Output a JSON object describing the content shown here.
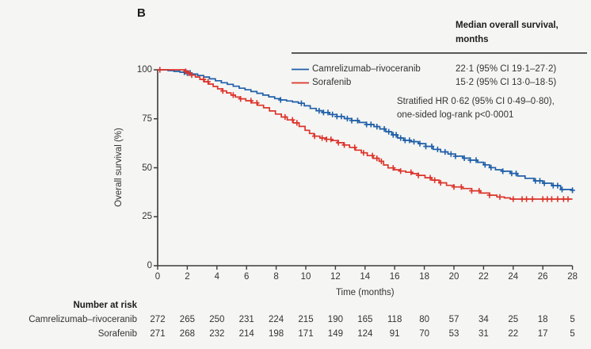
{
  "figure": {
    "panel_label": "B",
    "background_color": "#f5f5f3",
    "axis_color": "#3c3c3c",
    "text_color": "#333333"
  },
  "legend": {
    "header_line1": "Median overall survival,",
    "header_line2": "months",
    "rows": [
      {
        "name": "Camrelizumab–rivoceranib",
        "value": "22·1 (95% CI 19·1–27·2)",
        "color": "#1f5fa8"
      },
      {
        "name": "Sorafenib",
        "value": "15·2 (95% CI 13·0–18·5)",
        "color": "#dc342b"
      }
    ],
    "annotation_line1": "Stratified HR 0·62 (95% CI 0·49–0·80),",
    "annotation_line2": "one-sided log-rank p<0·0001"
  },
  "chart_data": {
    "type": "line",
    "subtype": "kaplan-meier-step",
    "title": "",
    "xlabel": "Time (months)",
    "ylabel": "Overall survival (%)",
    "xlim": [
      0,
      28
    ],
    "ylim": [
      0,
      100
    ],
    "xticks": [
      0,
      2,
      4,
      6,
      8,
      10,
      12,
      14,
      16,
      18,
      20,
      22,
      24,
      26,
      28
    ],
    "yticks": [
      0,
      25,
      50,
      75,
      100
    ],
    "grid": false,
    "legend_position": "top-right",
    "series": [
      {
        "name": "Camrelizumab–rivoceranib",
        "color": "#1f5fa8",
        "median_os_months": 22.1,
        "points": [
          [
            0,
            100
          ],
          [
            0.7,
            99.6
          ],
          [
            1.1,
            99.2
          ],
          [
            1.5,
            98.8
          ],
          [
            1.9,
            98.4
          ],
          [
            2.3,
            97.8
          ],
          [
            2.7,
            97.1
          ],
          [
            3.1,
            96.3
          ],
          [
            3.5,
            95.4
          ],
          [
            3.9,
            94.4
          ],
          [
            4.3,
            93.4
          ],
          [
            4.7,
            92.6
          ],
          [
            5.1,
            91.6
          ],
          [
            5.5,
            90.6
          ],
          [
            5.9,
            89.8
          ],
          [
            6.3,
            88.9
          ],
          [
            6.7,
            88.0
          ],
          [
            7.1,
            87.1
          ],
          [
            7.5,
            86.2
          ],
          [
            7.9,
            85.3
          ],
          [
            8.3,
            84.6
          ],
          [
            8.7,
            84.1
          ],
          [
            9.1,
            83.6
          ],
          [
            9.5,
            82.9
          ],
          [
            9.9,
            81.6
          ],
          [
            10.3,
            80.3
          ],
          [
            10.7,
            79.1
          ],
          [
            11.1,
            78.2
          ],
          [
            11.6,
            77.2
          ],
          [
            12.1,
            76.2
          ],
          [
            12.6,
            75.1
          ],
          [
            13.1,
            74.1
          ],
          [
            13.6,
            73.1
          ],
          [
            14.1,
            72.1
          ],
          [
            14.6,
            71.0
          ],
          [
            15.0,
            69.8
          ],
          [
            15.4,
            68.4
          ],
          [
            15.8,
            66.8
          ],
          [
            16.2,
            65.2
          ],
          [
            16.6,
            64.0
          ],
          [
            17.1,
            63.3
          ],
          [
            17.6,
            62.3
          ],
          [
            18.1,
            60.9
          ],
          [
            18.6,
            59.4
          ],
          [
            19.1,
            58.1
          ],
          [
            19.6,
            57.0
          ],
          [
            20.1,
            55.9
          ],
          [
            20.6,
            54.9
          ],
          [
            21.1,
            53.9
          ],
          [
            21.6,
            52.8
          ],
          [
            22.0,
            51.5
          ],
          [
            22.4,
            50.1
          ],
          [
            22.8,
            49.0
          ],
          [
            23.3,
            48.2
          ],
          [
            23.8,
            47.1
          ],
          [
            24.3,
            45.8
          ],
          [
            24.8,
            44.6
          ],
          [
            25.4,
            43.3
          ],
          [
            26.0,
            42.1
          ],
          [
            26.6,
            40.9
          ],
          [
            27.2,
            38.9
          ],
          [
            28,
            38.5
          ]
        ],
        "censor_times": [
          1.8,
          2.0,
          2.2,
          8.3,
          9.7,
          10.9,
          11.2,
          11.5,
          11.8,
          12.1,
          12.4,
          12.8,
          13.1,
          13.5,
          14.1,
          14.4,
          14.8,
          15.3,
          15.6,
          15.9,
          16.1,
          16.4,
          16.7,
          17.0,
          17.3,
          17.7,
          18.1,
          18.5,
          18.9,
          19.4,
          19.8,
          20.1,
          20.7,
          21.1,
          21.5,
          22.1,
          22.5,
          23.3,
          23.9,
          24.2,
          25.5,
          25.8,
          26.1,
          26.7,
          27.0,
          27.3,
          28.0
        ]
      },
      {
        "name": "Sorafenib",
        "color": "#dc342b",
        "median_os_months": 15.2,
        "points": [
          [
            0,
            100
          ],
          [
            1.85,
            99.2
          ],
          [
            2.05,
            98.3
          ],
          [
            2.3,
            97.3
          ],
          [
            2.55,
            96.3
          ],
          [
            2.85,
            95.1
          ],
          [
            3.15,
            93.9
          ],
          [
            3.45,
            92.7
          ],
          [
            3.75,
            91.5
          ],
          [
            4.05,
            90.3
          ],
          [
            4.35,
            89.2
          ],
          [
            4.65,
            88.2
          ],
          [
            4.95,
            87.1
          ],
          [
            5.25,
            86.1
          ],
          [
            5.55,
            85.2
          ],
          [
            5.95,
            84.2
          ],
          [
            6.35,
            83.1
          ],
          [
            6.75,
            81.9
          ],
          [
            7.15,
            80.6
          ],
          [
            7.55,
            79.0
          ],
          [
            7.95,
            77.4
          ],
          [
            8.35,
            75.9
          ],
          [
            8.75,
            74.4
          ],
          [
            9.15,
            72.9
          ],
          [
            9.55,
            71.1
          ],
          [
            9.95,
            69.1
          ],
          [
            10.25,
            67.5
          ],
          [
            10.55,
            66.1
          ],
          [
            10.95,
            65.2
          ],
          [
            11.35,
            64.5
          ],
          [
            11.75,
            63.9
          ],
          [
            12.15,
            62.8
          ],
          [
            12.55,
            61.6
          ],
          [
            12.95,
            60.4
          ],
          [
            13.35,
            59.0
          ],
          [
            13.75,
            57.6
          ],
          [
            14.15,
            56.2
          ],
          [
            14.55,
            54.8
          ],
          [
            14.95,
            53.3
          ],
          [
            15.25,
            51.4
          ],
          [
            15.55,
            49.9
          ],
          [
            15.95,
            49.0
          ],
          [
            16.35,
            48.3
          ],
          [
            16.75,
            47.7
          ],
          [
            17.15,
            47.0
          ],
          [
            17.6,
            46.1
          ],
          [
            18.05,
            44.9
          ],
          [
            18.5,
            43.7
          ],
          [
            19.0,
            42.3
          ],
          [
            19.5,
            41.0
          ],
          [
            20.0,
            40.2
          ],
          [
            20.6,
            39.4
          ],
          [
            21.2,
            38.2
          ],
          [
            21.8,
            37.1
          ],
          [
            22.4,
            36.0
          ],
          [
            22.9,
            35.1
          ],
          [
            23.4,
            34.6
          ],
          [
            23.8,
            34.0
          ],
          [
            28,
            34.0
          ]
        ],
        "censor_times": [
          0.15,
          1.9,
          2.1,
          2.3,
          3.1,
          3.4,
          4.4,
          5.1,
          5.6,
          6.3,
          6.7,
          8.6,
          9.1,
          9.4,
          10.6,
          11.1,
          11.4,
          11.7,
          12.2,
          12.6,
          13.3,
          13.9,
          14.5,
          14.8,
          15.1,
          15.9,
          16.4,
          17.1,
          17.6,
          18.4,
          18.7,
          19.1,
          20.0,
          20.5,
          21.2,
          21.7,
          22.4,
          23.1,
          24.0,
          24.6,
          24.9,
          25.3,
          26.0,
          26.3,
          26.6,
          27.0,
          27.4,
          27.7
        ]
      }
    ]
  },
  "risk_table": {
    "header": "Number at risk",
    "timepoints": [
      0,
      2,
      4,
      6,
      8,
      10,
      12,
      14,
      16,
      18,
      20,
      22,
      24,
      26,
      28
    ],
    "rows": [
      {
        "label": "Camrelizumab–rivoceranib",
        "counts": [
          272,
          265,
          250,
          231,
          224,
          215,
          190,
          165,
          118,
          80,
          57,
          34,
          25,
          18,
          5
        ]
      },
      {
        "label": "Sorafenib",
        "counts": [
          271,
          268,
          232,
          214,
          198,
          171,
          149,
          124,
          91,
          70,
          53,
          31,
          22,
          17,
          5
        ]
      }
    ]
  }
}
